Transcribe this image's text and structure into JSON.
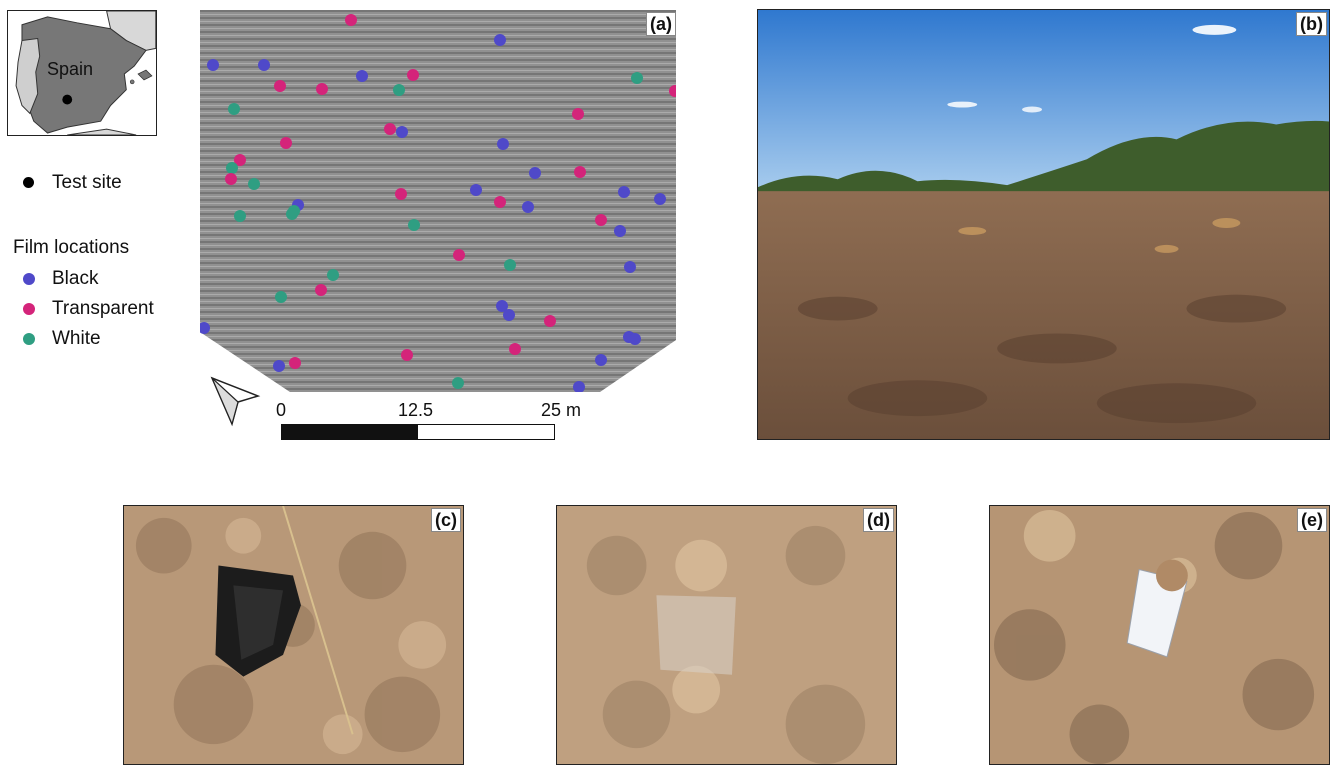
{
  "inset_map": {
    "country_label": "Spain"
  },
  "legend": {
    "site_label": "Test site",
    "film_title": "Film locations",
    "items": [
      {
        "label": "Black",
        "color": "#4f49c9"
      },
      {
        "label": "Transparent",
        "color": "#d4247a"
      },
      {
        "label": "White",
        "color": "#2f9e82"
      }
    ]
  },
  "panels": {
    "a": "(a)",
    "b": "(b)",
    "c": "(c)",
    "d": "(d)",
    "e": "(e)"
  },
  "scale_bar": {
    "tick_0": "0",
    "tick_mid": "12.5",
    "tick_end": "25 m"
  },
  "colors": {
    "soil": "#a88a6c",
    "sky": "#3f8ad8",
    "aerial": "#8b8b8b"
  },
  "icons": [
    "north-arrow-icon",
    "test-site-dot-icon"
  ]
}
